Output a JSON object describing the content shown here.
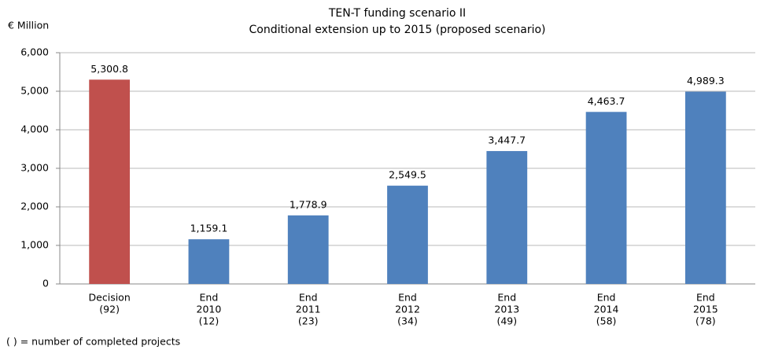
{
  "chart_data": {
    "type": "bar",
    "title": "TEN-T funding scenario II",
    "subtitle": "Conditional extension up to 2015 (proposed scenario)",
    "y_label": "€ Million",
    "note": "( ) = number of completed projects",
    "categories": [
      [
        "Decision",
        "(92)"
      ],
      [
        "End",
        "2010",
        "(12)"
      ],
      [
        "End",
        "2011",
        "(23)"
      ],
      [
        "End",
        "2012",
        "(34)"
      ],
      [
        "End",
        "2013",
        "(49)"
      ],
      [
        "End",
        "2014",
        "(58)"
      ],
      [
        "End",
        "2015",
        "(78)"
      ]
    ],
    "values": [
      5300.8,
      1159.1,
      1778.9,
      2549.5,
      3447.7,
      4463.7,
      4989.3
    ],
    "value_labels": [
      "5,300.8",
      "1,159.1",
      "1,778.9",
      "2,549.5",
      "3,447.7",
      "4,463.7",
      "4,989.3"
    ],
    "colors": [
      "#c0504d",
      "#4f81bd",
      "#4f81bd",
      "#4f81bd",
      "#4f81bd",
      "#4f81bd",
      "#4f81bd"
    ],
    "ylim": [
      0,
      6000
    ],
    "yticks": [
      0,
      {
        "value": 1000,
        "label": "1,000"
      },
      {
        "value": 2000,
        "label": "2,000"
      },
      {
        "value": 3000,
        "label": "3,000"
      },
      {
        "value": 4000,
        "label": "4,000"
      },
      {
        "value": 5000,
        "label": "5,000"
      },
      {
        "value": 6000,
        "label": "6,000"
      }
    ],
    "grid": true
  }
}
